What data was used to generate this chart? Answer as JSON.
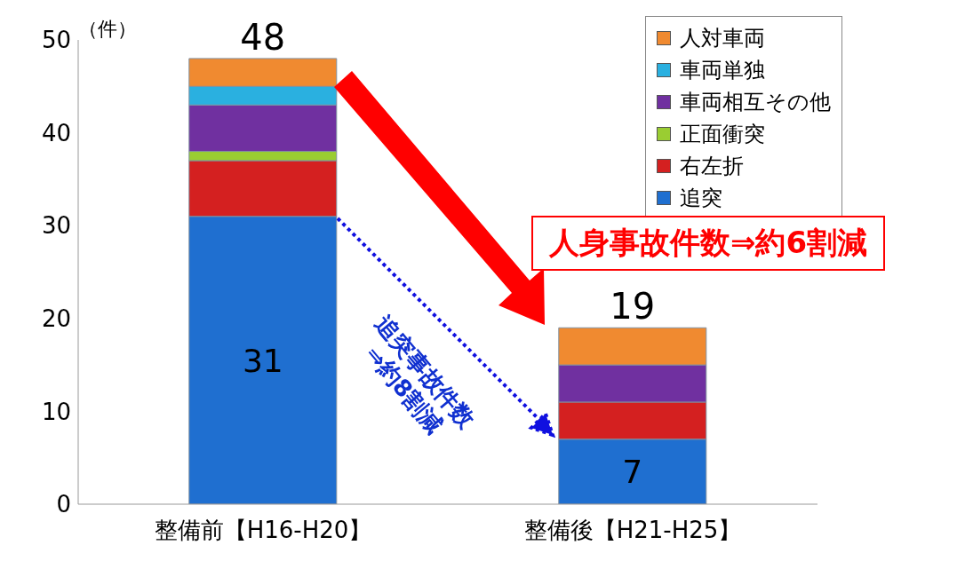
{
  "chart_data": {
    "type": "bar",
    "stacked": true,
    "ylabel": "（件）",
    "categories": [
      "整備前【H16-H20】",
      "整備後【H21-H25】"
    ],
    "series": [
      {
        "name": "追突",
        "color": "#1f6fd0",
        "values": [
          31,
          7
        ],
        "value_labels": [
          "31",
          "7"
        ]
      },
      {
        "name": "右左折",
        "color": "#d42020",
        "values": [
          6,
          4
        ]
      },
      {
        "name": "正面衝突",
        "color": "#9acd32",
        "values": [
          1,
          0
        ]
      },
      {
        "name": "車両相互その他",
        "color": "#7030a0",
        "values": [
          5,
          4
        ]
      },
      {
        "name": "車両単独",
        "color": "#2ab0e0",
        "values": [
          2,
          0
        ]
      },
      {
        "name": "人対車両",
        "color": "#f08a30",
        "values": [
          3,
          4
        ]
      }
    ],
    "totals": [
      "48",
      "19"
    ],
    "ylim": [
      0,
      50
    ],
    "yticks": [
      0,
      10,
      20,
      30,
      40,
      50
    ],
    "grid": false,
    "legend": "top right",
    "annotations": [
      "人身事故件数⇒約6割減",
      "追突事故件数\n⇒約8割減"
    ]
  }
}
